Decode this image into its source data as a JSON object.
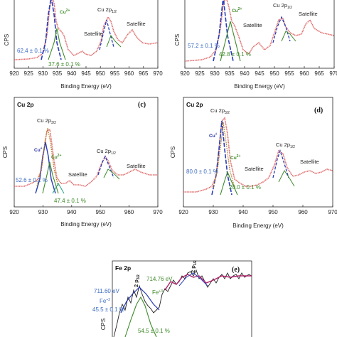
{
  "colors": {
    "expt": "#e06a6a",
    "fit": "#222222",
    "cu1": "#2a3db8",
    "cu2": "#3f8a2a",
    "sat": "#1fa37a",
    "env": "#b07a20",
    "fe3": "#b0206a"
  },
  "chart_data": [
    {
      "panel": "a",
      "type": "line",
      "core_label": "",
      "panel_tag": "",
      "xlabel": "Binding Energy (eV)",
      "ylabel": "CPS",
      "xlim": [
        920,
        970
      ],
      "xticks": [
        "920",
        "925",
        "930",
        "935",
        "940",
        "945",
        "950",
        "955",
        "960",
        "965",
        "970"
      ],
      "annotations": {
        "cu2": "Cu2+",
        "cu2p12_main": "Cu 2p",
        "cu2p12_sub": "1/2",
        "satellite1": "Satellite",
        "satellite2": "Satellite",
        "pct_cu1": "62.4 ± 0.1 %",
        "pct_cu2": "37.6 ± 0.1 %"
      }
    },
    {
      "panel": "b",
      "type": "line",
      "core_label": "",
      "panel_tag": "",
      "xlabel": "Binding Energy (eV)",
      "ylabel": "CPS",
      "xlim": [
        920,
        970
      ],
      "xticks": [
        "920",
        "925",
        "930",
        "935",
        "940",
        "945",
        "950",
        "955",
        "960",
        "965",
        "970"
      ],
      "annotations": {
        "cu2": "Cu2+",
        "cu2p12_main": "Cu 2p",
        "cu2p12_sub": "1/2",
        "satellite1": "Satellite",
        "satellite2": "Satellite",
        "pct_cu1": "57.2 ± 0.1 %",
        "pct_cu2": "42.8 ± 0.1 %"
      }
    },
    {
      "panel": "c",
      "type": "line",
      "core_label": "Cu 2p",
      "panel_tag": "(c)",
      "xlabel": "Binding Energy (eV)",
      "ylabel": "CPS",
      "xlim": [
        920,
        970
      ],
      "xticks": [
        "920",
        "930",
        "940",
        "950",
        "960",
        "970"
      ],
      "annotations": {
        "cu1": "Cu+",
        "cu2": "Cu2+",
        "cu2p32_main": "Cu 2p",
        "cu2p32_sub": "3/2",
        "cu2p12_main": "Cu 2p",
        "cu2p12_sub": "1/2",
        "satellite1": "Satellite",
        "satellite2": "Satellite",
        "pct_cu1": "52.6 ± 0.1 %",
        "pct_cu2": "47.4 ± 0.1 %"
      }
    },
    {
      "panel": "d",
      "type": "line",
      "core_label": "Cu 2p",
      "panel_tag": "(d)",
      "xlabel": "Binding Energy (eV)",
      "ylabel": "CPS",
      "xlim": [
        920,
        970
      ],
      "xticks": [
        "920",
        "930",
        "940",
        "950",
        "960",
        "970"
      ],
      "annotations": {
        "cu1": "Cu+",
        "cu2": "Cu2+",
        "cu2p32_main": "Cu 2p",
        "cu2p32_sub": "3/2",
        "cu2p12_main": "Cu 2p",
        "cu2p12_sub": "1/2",
        "satellite1": "Satellite",
        "satellite2": "Satellite",
        "pct_cu1": "80.0 ± 0.1 %",
        "pct_cu2": "20.0 ± 0.1 %"
      }
    },
    {
      "panel": "e",
      "type": "line",
      "core_label": "Fe 2p",
      "panel_tag": "(e)",
      "xlabel": "",
      "ylabel": "CPS",
      "annotations": {
        "p32": "2 p3/2",
        "p12": "2 p1/2",
        "fe3_energy": "714.76 eV",
        "fe3": "Fe+3",
        "fe2_energy": "711.60 eV",
        "fe2": "Fe+2",
        "pct_fe2": "45.5 ± 0.1 %",
        "pct_fe3": "54.5 ± 0.1 %"
      }
    }
  ]
}
